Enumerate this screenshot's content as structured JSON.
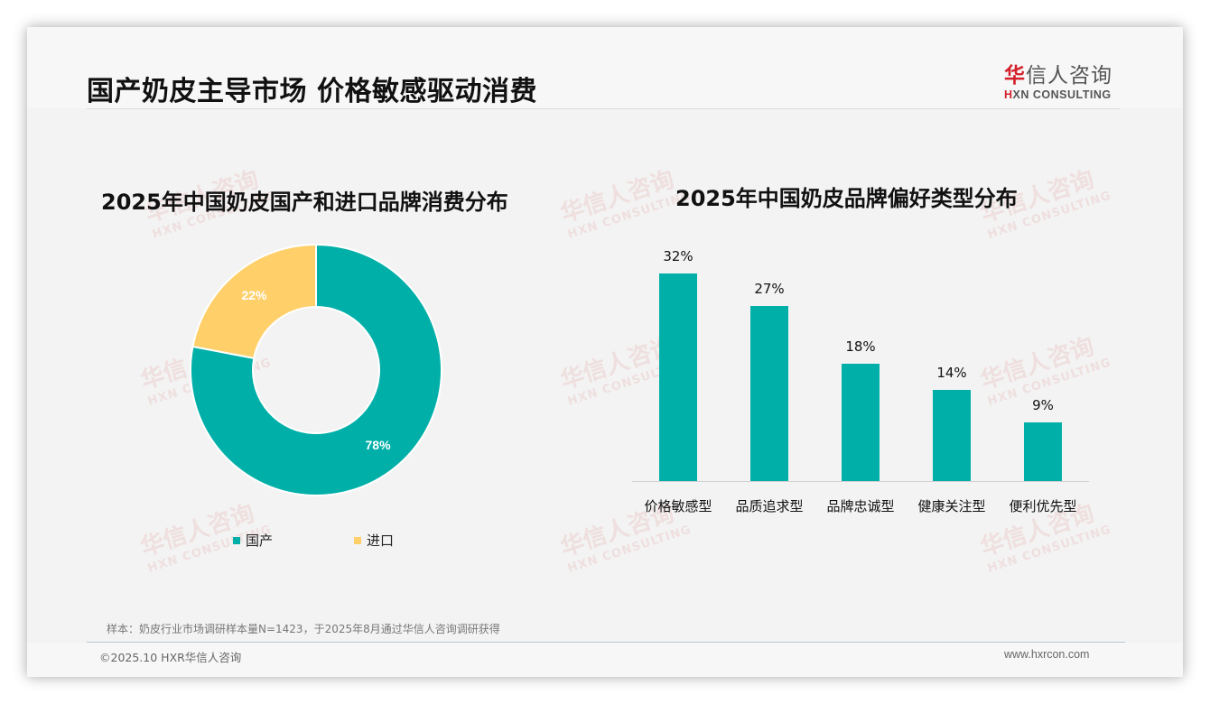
{
  "header": {
    "title": "国产奶皮主导市场 价格敏感驱动消费",
    "logo_cn_first": "华",
    "logo_cn_rest": "信人咨询",
    "logo_en_first": "H",
    "logo_en_rest": "XN CONSULTING"
  },
  "watermark": {
    "cn": "华信人咨询",
    "en": "HXN CONSULTING"
  },
  "left_chart": {
    "title": "2025年中国奶皮国产和进口品牌消费分布",
    "legend": [
      {
        "label": "国产",
        "color": "#00b0a8"
      },
      {
        "label": "进口",
        "color": "#ffd06a"
      }
    ],
    "slice_labels": [
      "78%",
      "22%"
    ]
  },
  "right_chart": {
    "title": "2025年中国奶皮品牌偏好类型分布",
    "value_labels": [
      "32%",
      "27%",
      "18%",
      "14%",
      "9%"
    ],
    "categories": [
      "价格敏感型",
      "品质追求型",
      "品牌忠诚型",
      "健康关注型",
      "便利优先型"
    ]
  },
  "chart_data": [
    {
      "type": "pie",
      "title": "2025年中国奶皮国产和进口品牌消费分布",
      "donut": true,
      "categories": [
        "国产",
        "进口"
      ],
      "values": [
        78,
        22
      ],
      "colors": [
        "#00b0a8",
        "#ffd06a"
      ],
      "unit": "%",
      "legend_position": "bottom"
    },
    {
      "type": "bar",
      "title": "2025年中国奶皮品牌偏好类型分布",
      "categories": [
        "价格敏感型",
        "品质追求型",
        "品牌忠诚型",
        "健康关注型",
        "便利优先型"
      ],
      "values": [
        32,
        27,
        18,
        14,
        9
      ],
      "unit": "%",
      "color": "#00b0a8",
      "xlabel": "",
      "ylabel": "",
      "ylim": [
        0,
        35
      ],
      "grid": false,
      "data_labels": true
    }
  ],
  "footer": {
    "note": "样本：奶皮行业市场调研样本量N=1423，于2025年8月通过华信人咨询调研获得",
    "copyright": "©2025.10 HXR华信人咨询",
    "website": "www.hxrcon.com"
  }
}
